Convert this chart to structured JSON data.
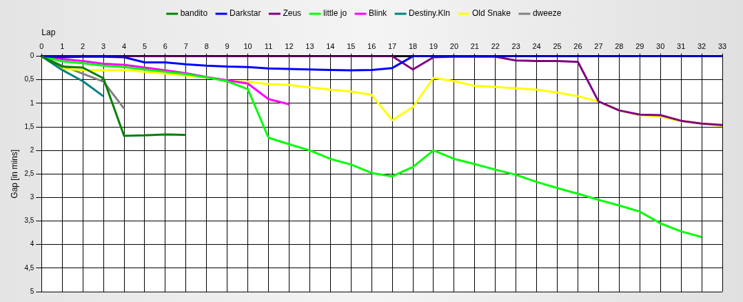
{
  "chart_data": {
    "type": "line",
    "xlabel": "Lap",
    "ylabel": "Gap [in mins]",
    "x": [
      0,
      1,
      2,
      3,
      4,
      5,
      6,
      7,
      8,
      9,
      10,
      11,
      12,
      13,
      14,
      15,
      16,
      17,
      18,
      19,
      20,
      21,
      22,
      23,
      24,
      25,
      26,
      27,
      28,
      29,
      30,
      31,
      32,
      33
    ],
    "xlim": [
      0,
      33
    ],
    "xticks": [
      0,
      1,
      2,
      3,
      4,
      5,
      6,
      7,
      8,
      9,
      10,
      11,
      12,
      13,
      14,
      15,
      16,
      17,
      18,
      19,
      20,
      21,
      22,
      23,
      24,
      25,
      26,
      27,
      28,
      29,
      30,
      31,
      32,
      33
    ],
    "ylim": [
      5,
      0
    ],
    "yticks": [
      0,
      {
        "value": 0.5,
        "label": "0,5"
      },
      1,
      {
        "value": 1.5,
        "label": "1,5"
      },
      2,
      {
        "value": 2.5,
        "label": "2,5"
      },
      3,
      {
        "value": 3.5,
        "label": "3,5"
      },
      4,
      {
        "value": 4.5,
        "label": "4,5"
      },
      5
    ],
    "grid": true,
    "legend": "top",
    "marker": "none",
    "line_style": "solid",
    "series": [
      {
        "name": "bandito",
        "color": "#008000",
        "x": [
          0,
          1,
          2,
          3,
          4,
          5,
          6,
          7
        ],
        "values": [
          0,
          0.22,
          0.24,
          0.47,
          1.69,
          1.68,
          1.66,
          1.67
        ]
      },
      {
        "name": "Darkstar",
        "color": "#0000ff",
        "values": [
          0,
          0.02,
          0.01,
          0.01,
          0.02,
          0.13,
          0.13,
          0.17,
          0.2,
          0.22,
          0.23,
          0.26,
          0.27,
          0.28,
          0.29,
          0.3,
          0.29,
          0.25,
          0,
          0,
          0,
          0,
          0,
          0,
          0,
          0,
          0,
          0,
          0,
          0,
          0,
          0,
          0,
          0
        ]
      },
      {
        "name": "Zeus",
        "color": "#800080",
        "values": [
          0,
          0,
          0,
          0,
          0,
          0,
          0,
          0,
          0,
          0,
          0,
          0,
          0,
          0,
          0,
          0,
          0,
          0,
          0.28,
          0.02,
          0.01,
          0.01,
          0.01,
          0.09,
          0.1,
          0.1,
          0.12,
          0.96,
          1.15,
          1.24,
          1.25,
          1.37,
          1.43,
          1.46
        ]
      },
      {
        "name": "little jo",
        "color": "#00ff00",
        "x": [
          0,
          1,
          2,
          3,
          4,
          5,
          6,
          7,
          8,
          9,
          10,
          11,
          12,
          13,
          14,
          15,
          16,
          17,
          18,
          19,
          20,
          21,
          22,
          23,
          24,
          25,
          26,
          27,
          28,
          29,
          30,
          31,
          32
        ],
        "values": [
          0,
          0.11,
          0.15,
          0.2,
          0.23,
          0.28,
          0.33,
          0.38,
          0.45,
          0.53,
          0.7,
          1.73,
          1.87,
          2,
          2.18,
          2.3,
          2.48,
          2.55,
          2.35,
          2,
          2.18,
          2.29,
          2.41,
          2.52,
          2.67,
          2.8,
          2.92,
          3.05,
          3.17,
          3.3,
          3.55,
          3.72,
          3.84
        ]
      },
      {
        "name": "Blink",
        "color": "#ff00ff",
        "x": [
          0,
          1,
          2,
          3,
          4,
          5,
          6,
          7,
          8,
          9,
          10,
          11,
          12
        ],
        "values": [
          0,
          0.06,
          0.1,
          0.16,
          0.18,
          0.24,
          0.3,
          0.36,
          0.44,
          0.51,
          0.58,
          0.91,
          1.02
        ]
      },
      {
        "name": "Destiny.Kln",
        "color": "#008080",
        "x": [
          0,
          1,
          2,
          3
        ],
        "values": [
          0,
          0.29,
          0.53,
          0.85
        ]
      },
      {
        "name": "Old Snake",
        "color": "#ffff00",
        "values": [
          0,
          0.27,
          0.29,
          0.3,
          0.29,
          0.33,
          0.37,
          0.41,
          0.45,
          0.53,
          0.54,
          0.59,
          0.61,
          0.66,
          0.71,
          0.75,
          0.82,
          1.36,
          1.08,
          0.46,
          0.53,
          0.63,
          0.65,
          0.68,
          0.71,
          0.77,
          0.85,
          0.96,
          1.15,
          1.25,
          1.28,
          1.38,
          1.43,
          1.48
        ]
      },
      {
        "name": "dweeze",
        "color": "#808080",
        "x": [
          0,
          1,
          2,
          3,
          4
        ],
        "values": [
          0,
          0.2,
          0.37,
          0.54,
          1.11
        ]
      }
    ]
  }
}
